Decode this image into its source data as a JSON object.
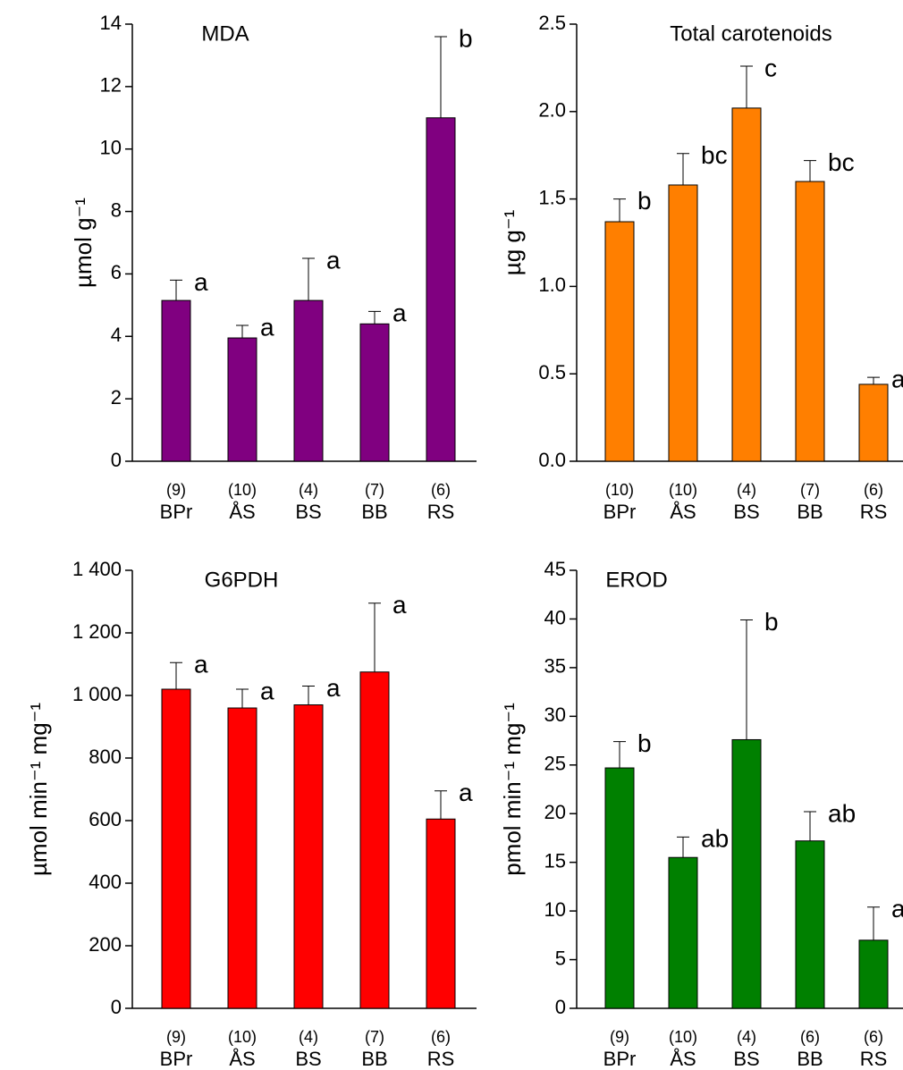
{
  "chart_data": [
    {
      "type": "bar",
      "title": "MDA",
      "y_label": "µmol g⁻¹",
      "color": "#800080",
      "categories": [
        "BPr",
        "ÅS",
        "BS",
        "BB",
        "RS"
      ],
      "n_labels": [
        "(9)",
        "(10)",
        "(4)",
        "(7)",
        "(6)"
      ],
      "values": [
        5.15,
        3.95,
        5.15,
        4.4,
        11.0
      ],
      "errors": [
        0.65,
        0.4,
        1.35,
        0.4,
        2.6
      ],
      "letters": [
        "a",
        "a",
        "a",
        "a",
        "b"
      ],
      "ylim": [
        0,
        14
      ],
      "yticks": [
        0,
        2,
        4,
        6,
        8,
        10,
        12,
        14
      ]
    },
    {
      "type": "bar",
      "title": "Total carotenoids",
      "y_label": "µg g⁻¹",
      "color": "#ff7f00",
      "categories": [
        "BPr",
        "ÅS",
        "BS",
        "BB",
        "RS"
      ],
      "n_labels": [
        "(10)",
        "(10)",
        "(4)",
        "(7)",
        "(6)"
      ],
      "values": [
        1.37,
        1.58,
        2.02,
        1.6,
        0.44
      ],
      "errors": [
        0.13,
        0.18,
        0.24,
        0.12,
        0.04
      ],
      "letters": [
        "b",
        "bc",
        "c",
        "bc",
        "a"
      ],
      "ylim": [
        0,
        2.5
      ],
      "yticks": [
        {
          "value": 0,
          "label": "0.0"
        },
        0.5,
        {
          "value": 1,
          "label": "1.0"
        },
        1.5,
        {
          "value": 2,
          "label": "2.0"
        },
        2.5
      ]
    },
    {
      "type": "bar",
      "title": "G6PDH",
      "y_label": "µmol min⁻¹ mg⁻¹",
      "color": "#ff0000",
      "categories": [
        "BPr",
        "ÅS",
        "BS",
        "BB",
        "RS"
      ],
      "n_labels": [
        "(9)",
        "(10)",
        "(4)",
        "(7)",
        "(6)"
      ],
      "values": [
        1020,
        960,
        970,
        1075,
        605
      ],
      "errors": [
        85,
        60,
        60,
        220,
        90
      ],
      "letters": [
        "a",
        "a",
        "a",
        "a",
        "a"
      ],
      "ylim": [
        0,
        1400
      ],
      "yticks": [
        0,
        200,
        400,
        600,
        800,
        {
          "value": 1000,
          "label": "1 000"
        },
        {
          "value": 1200,
          "label": "1 200"
        },
        {
          "value": 1400,
          "label": "1 400"
        }
      ]
    },
    {
      "type": "bar",
      "title": "EROD",
      "y_label": "pmol min⁻¹ mg⁻¹",
      "color": "#008000",
      "categories": [
        "BPr",
        "ÅS",
        "BS",
        "BB",
        "RS"
      ],
      "n_labels": [
        "(9)",
        "(10)",
        "(4)",
        "(6)",
        "(6)"
      ],
      "values": [
        24.7,
        15.5,
        27.6,
        17.2,
        7.0
      ],
      "errors": [
        2.7,
        2.1,
        12.3,
        3.0,
        3.4
      ],
      "letters": [
        "b",
        "ab",
        "b",
        "ab",
        "a"
      ],
      "ylim": [
        0,
        45
      ],
      "yticks": [
        0,
        5,
        10,
        15,
        20,
        25,
        30,
        35,
        40,
        45
      ]
    }
  ]
}
